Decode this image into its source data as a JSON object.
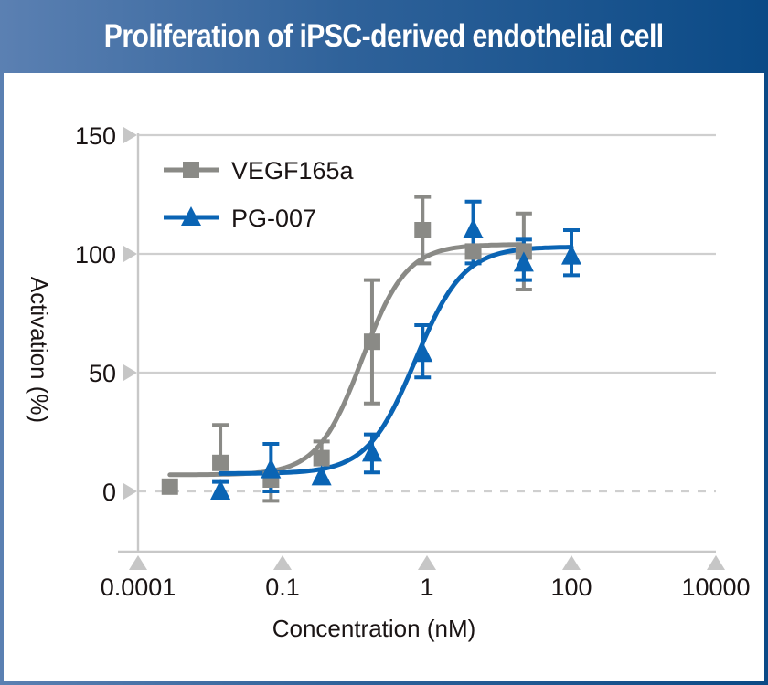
{
  "header": {
    "title": "Proliferation of iPSC-derived endothelial cell"
  },
  "chart_data": {
    "type": "scatter",
    "title": "Proliferation of iPSC-derived endothelial cell",
    "xlabel": "Concentration (nM)",
    "ylabel": "Activation (%)",
    "x_scale": "log (tick labels evenly spaced)",
    "x_ticks": [
      "0.0001",
      "0.1",
      "1",
      "100",
      "10000"
    ],
    "y_ticks": [
      "150",
      "100",
      "50",
      "0"
    ],
    "y_tick_values": [
      150,
      100,
      50,
      0
    ],
    "ylim": [
      -25,
      150
    ],
    "grid": "horizontal",
    "zero_line": "dashed",
    "legend": "top-left",
    "colors": {
      "VEGF165a": "#8a8a86",
      "PG-007": "#0a64b4",
      "grid": "#cfcfcf",
      "axis": "#c8c8c8"
    },
    "series": [
      {
        "name": "VEGF165a",
        "marker": "square",
        "x_pos": [
          0.22,
          0.57,
          0.92,
          1.27,
          1.62,
          1.97,
          2.32,
          2.67
        ],
        "y": [
          2,
          12,
          5,
          14,
          63,
          110,
          101,
          101
        ],
        "err_upper": [
          null,
          28,
          null,
          21,
          89,
          124,
          null,
          117
        ],
        "err_lower": [
          null,
          null,
          -4,
          null,
          37,
          96,
          null,
          85
        ],
        "fit": {
          "bottom": 7,
          "top": 104,
          "midpoint_pos": 1.55,
          "slope": 6.5,
          "x_pos_range": [
            0.22,
            2.67
          ]
        }
      },
      {
        "name": "PG-007",
        "marker": "triangle",
        "x_pos": [
          0.57,
          0.92,
          1.27,
          1.62,
          1.97,
          2.32,
          2.67,
          3.0
        ],
        "y": [
          0,
          9,
          6,
          16,
          58,
          110,
          96,
          99
        ],
        "err_upper": [
          4,
          20,
          null,
          24,
          70,
          122,
          106,
          110
        ],
        "err_lower": [
          null,
          0,
          null,
          8,
          48,
          96,
          89,
          91
        ],
        "fit": {
          "bottom": 7.5,
          "top": 103,
          "midpoint_pos": 1.92,
          "slope": 6.0,
          "x_pos_range": [
            0.57,
            3.0
          ]
        }
      }
    ]
  }
}
